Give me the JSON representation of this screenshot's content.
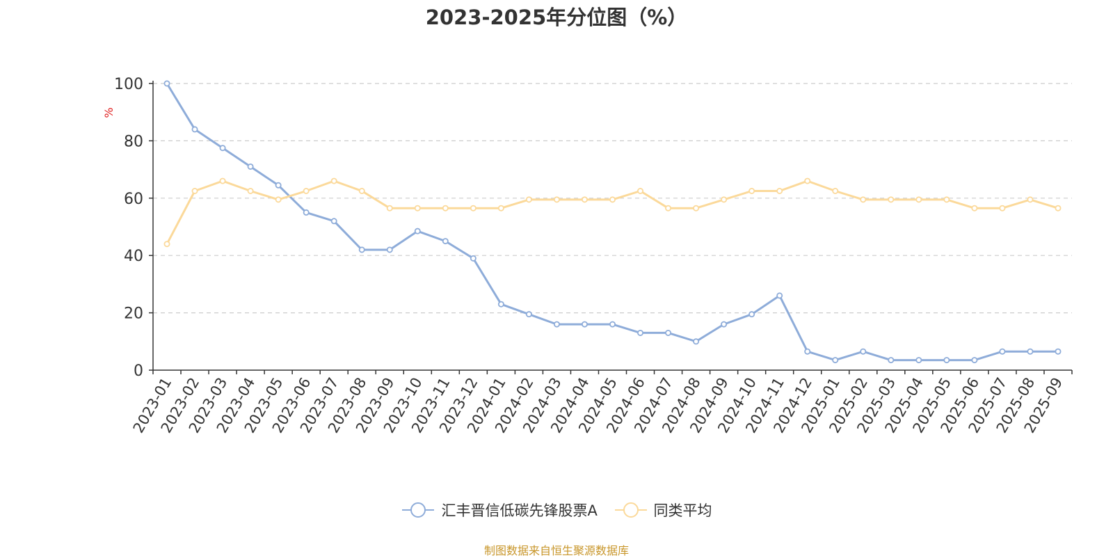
{
  "chart_data": {
    "type": "line",
    "title": "2023-2025年分位图（%）",
    "ylabel": "%",
    "xlabel": "",
    "ylim": [
      0,
      100
    ],
    "yticks": [
      0,
      20,
      40,
      60,
      80,
      100
    ],
    "grid": true,
    "legend_position": "bottom",
    "categories": [
      "2023-01",
      "2023-02",
      "2023-03",
      "2023-04",
      "2023-05",
      "2023-06",
      "2023-07",
      "2023-08",
      "2023-09",
      "2023-10",
      "2023-11",
      "2023-12",
      "2024-01",
      "2024-02",
      "2024-03",
      "2024-04",
      "2024-05",
      "2024-06",
      "2024-07",
      "2024-08",
      "2024-09",
      "2024-10",
      "2024-11",
      "2024-12",
      "2025-01",
      "2025-02",
      "2025-03",
      "2025-04",
      "2025-05",
      "2025-06",
      "2025-07",
      "2025-08",
      "2025-09"
    ],
    "series": [
      {
        "name": "汇丰晋信低碳先锋股票A",
        "color": "#8eacd9",
        "values": [
          100,
          84,
          77.5,
          71,
          64.5,
          55,
          52,
          42,
          42,
          48.5,
          45,
          39,
          23,
          19.5,
          16,
          16,
          16,
          13,
          13,
          10,
          16,
          19.5,
          26,
          6.5,
          3.5,
          6.5,
          3.5,
          3.5,
          3.5,
          3.5,
          6.5,
          6.5,
          6.5
        ]
      },
      {
        "name": "同类平均",
        "color": "#fbd99a",
        "values": [
          44,
          62.5,
          66,
          62.5,
          59.5,
          62.5,
          66,
          62.5,
          56.5,
          56.5,
          56.5,
          56.5,
          56.5,
          59.5,
          59.5,
          59.5,
          59.5,
          62.5,
          56.5,
          56.5,
          59.5,
          62.5,
          62.5,
          66,
          62.5,
          59.5,
          59.5,
          59.5,
          59.5,
          56.5,
          56.5,
          59.5,
          56.5
        ]
      }
    ]
  },
  "legend": {
    "items": [
      {
        "label": "汇丰晋信低碳先锋股票A",
        "color": "#8eacd9"
      },
      {
        "label": "同类平均",
        "color": "#fbd99a"
      }
    ]
  },
  "footer": {
    "source": "制图数据来自恒生聚源数据库"
  }
}
